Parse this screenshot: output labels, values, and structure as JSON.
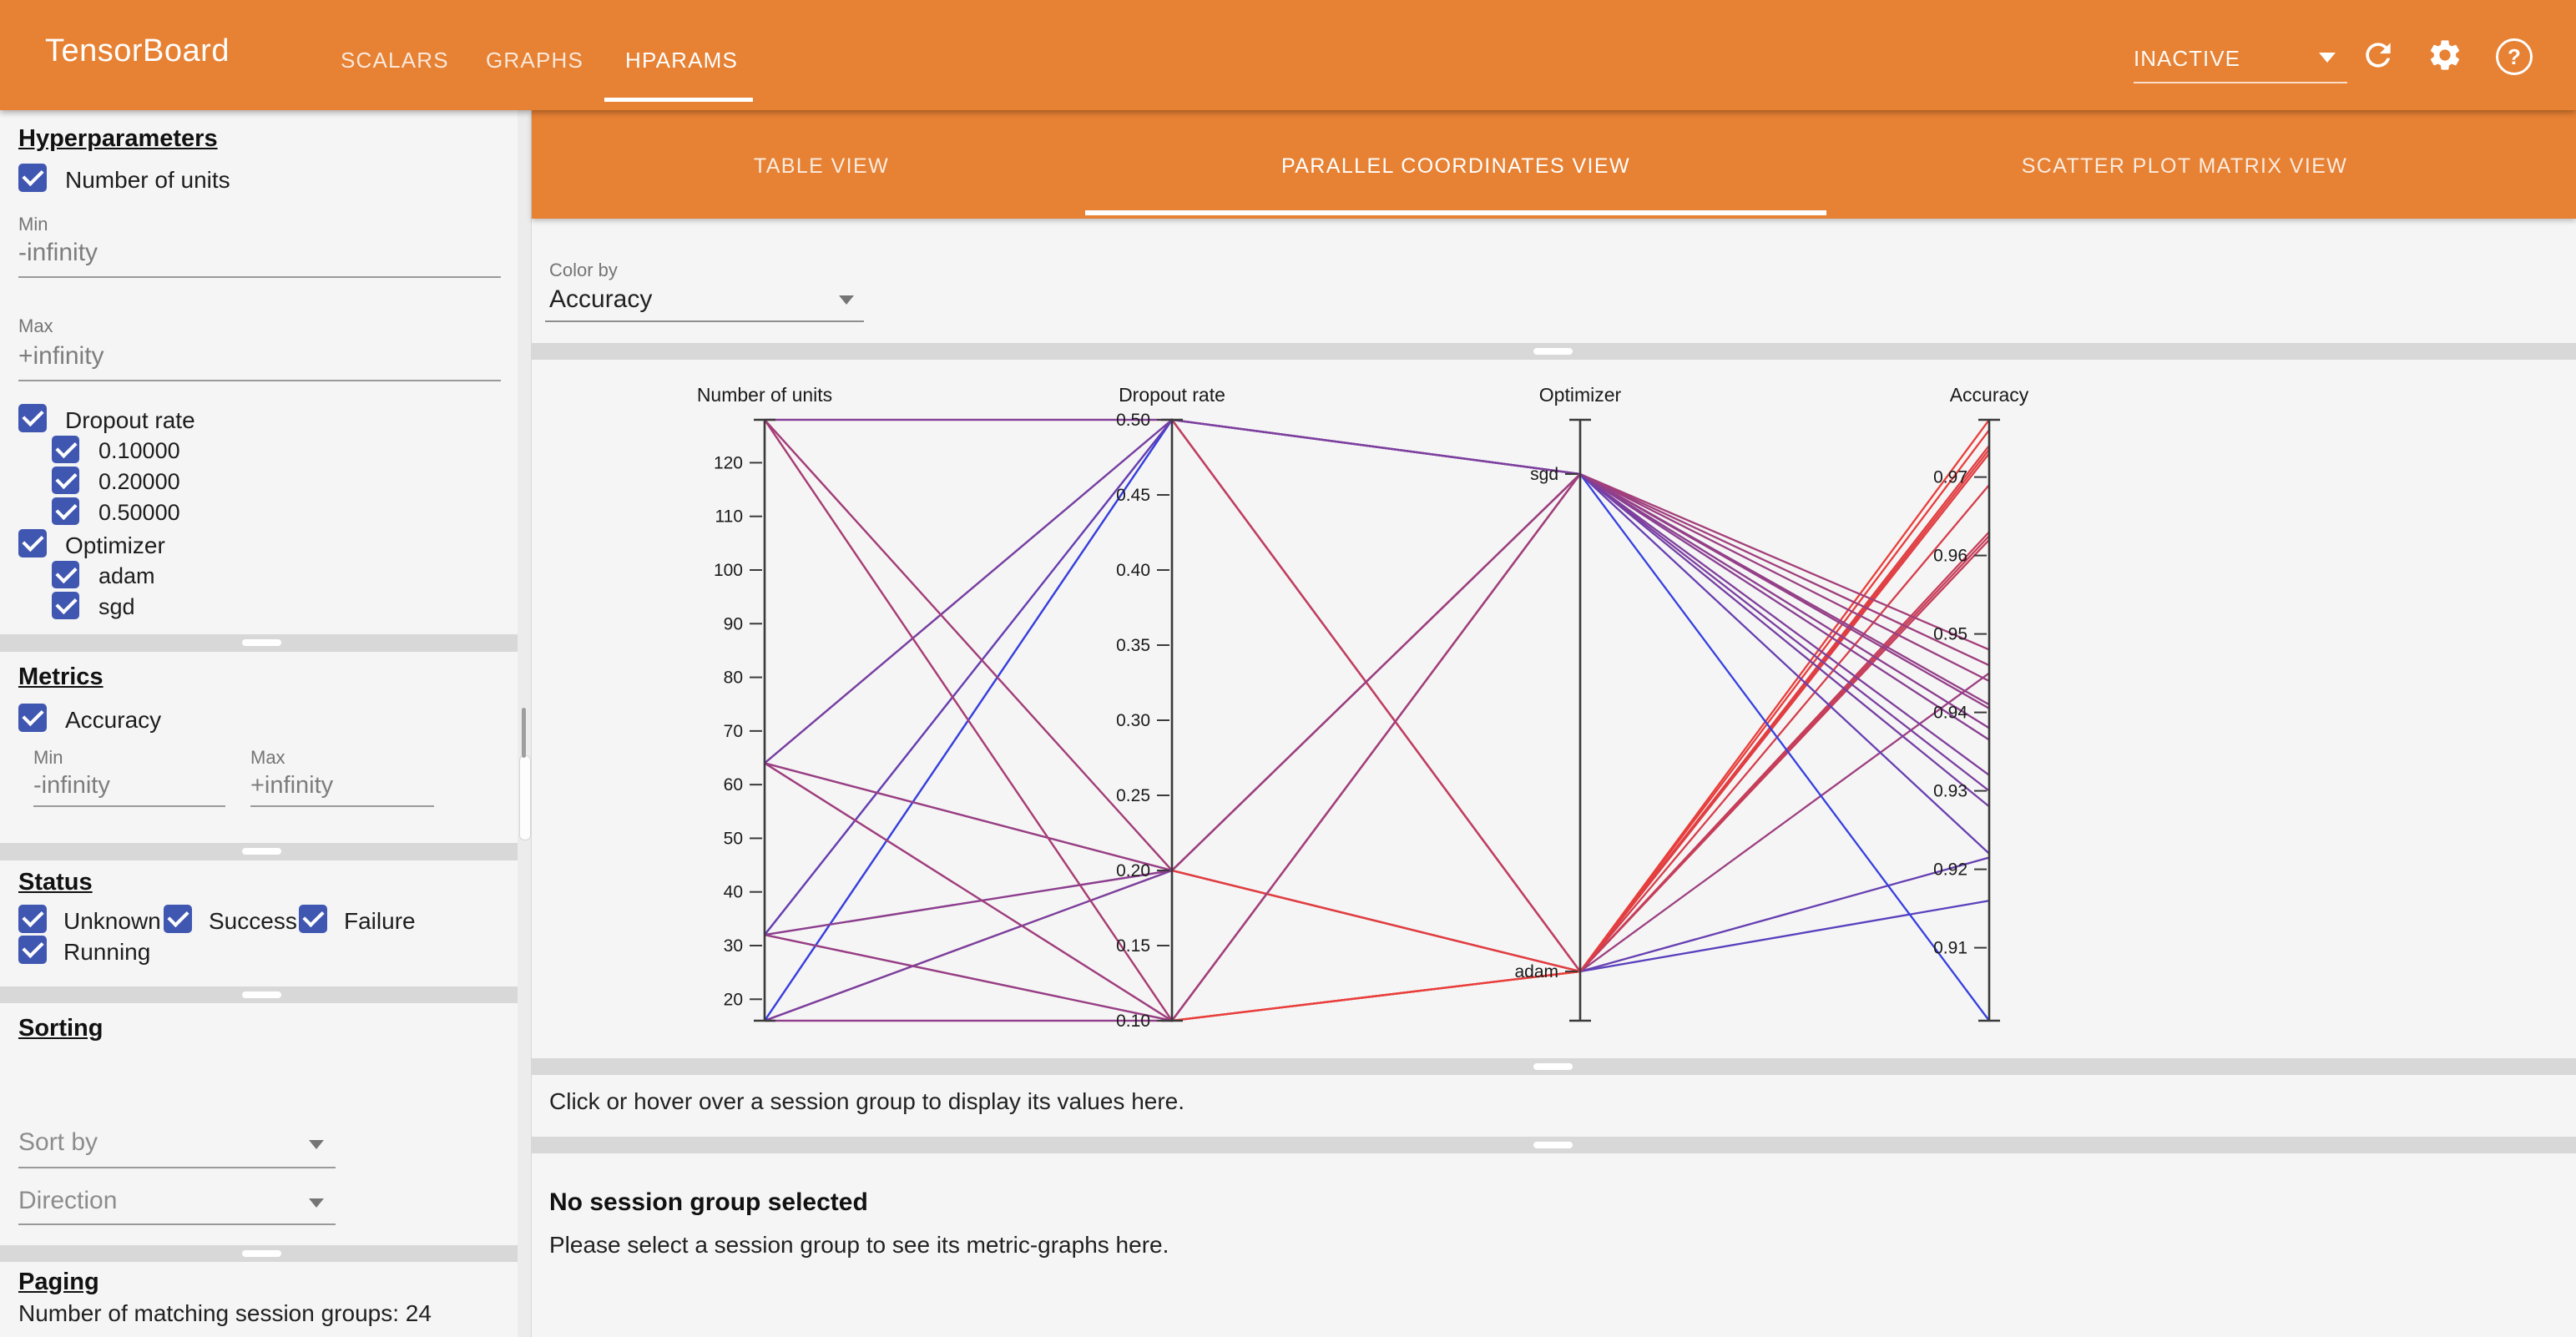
{
  "header": {
    "title": "TensorBoard",
    "tabs": [
      {
        "label": "SCALARS",
        "active": false
      },
      {
        "label": "GRAPHS",
        "active": false
      },
      {
        "label": "HPARAMS",
        "active": true
      }
    ],
    "status": "INACTIVE",
    "icons": {
      "dropdown_arrow": "▾",
      "reload": "reload-icon",
      "settings": "settings-icon",
      "help": "?"
    }
  },
  "view_tabs": [
    {
      "label": "TABLE VIEW",
      "active": false
    },
    {
      "label": "PARALLEL COORDINATES VIEW",
      "active": true
    },
    {
      "label": "SCATTER PLOT MATRIX VIEW",
      "active": false
    }
  ],
  "color_by": {
    "label": "Color by",
    "value": "Accuracy"
  },
  "sidebar": {
    "hyperparameters": {
      "heading": "Hyperparameters",
      "number_of_units": {
        "label": "Number of units",
        "checked": true,
        "min_label": "Min",
        "min_value": "-infinity",
        "max_label": "Max",
        "max_value": "+infinity"
      },
      "dropout": {
        "label": "Dropout rate",
        "checked": true,
        "children": [
          "0.10000",
          "0.20000",
          "0.50000"
        ]
      },
      "optimizer": {
        "label": "Optimizer",
        "checked": true,
        "children": [
          "adam",
          "sgd"
        ]
      }
    },
    "metrics": {
      "heading": "Metrics",
      "accuracy_label": "Accuracy",
      "checked": true,
      "min_label": "Min",
      "min_value": "-infinity",
      "max_label": "Max",
      "max_value": "+infinity"
    },
    "status": {
      "heading": "Status",
      "options": [
        "Unknown",
        "Success",
        "Failure",
        "Running"
      ]
    },
    "sorting": {
      "heading": "Sorting",
      "sort_by_placeholder": "Sort by",
      "direction_placeholder": "Direction"
    },
    "paging": {
      "heading": "Paging",
      "summary": "Number of matching session groups: 24"
    }
  },
  "hint": "Click or hover over a session group to display its values here.",
  "empty_state": {
    "title": "No session group selected",
    "subtitle": "Please select a session group to see its metric-graphs here."
  },
  "chart_data": {
    "type": "parallel-coordinates",
    "color_by": "Accuracy",
    "color_scale": {
      "min": "#3540df",
      "max": "#e93e3a",
      "min_value": 0.9007,
      "max_value": 0.9773
    },
    "axes": [
      {
        "name": "Number of units",
        "scale": "linear",
        "min": 16,
        "max": 128,
        "ticks": [
          "20",
          "30",
          "40",
          "50",
          "60",
          "70",
          "80",
          "90",
          "100",
          "110",
          "120"
        ]
      },
      {
        "name": "Dropout rate",
        "scale": "linear",
        "min": 0.1,
        "max": 0.5,
        "ticks": [
          "0.10",
          "0.15",
          "0.20",
          "0.25",
          "0.30",
          "0.35",
          "0.40",
          "0.45",
          "0.50"
        ]
      },
      {
        "name": "Optimizer",
        "scale": "categorical",
        "categories": [
          "sgd",
          "adam"
        ]
      },
      {
        "name": "Accuracy",
        "scale": "linear",
        "min": 0.9007,
        "max": 0.9773,
        "ticks": [
          "0.91",
          "0.92",
          "0.93",
          "0.94",
          "0.95",
          "0.96",
          "0.97"
        ]
      }
    ],
    "sessions": [
      {
        "units": 16,
        "dropout": 0.1,
        "optimizer": "adam",
        "accuracy": 0.969
      },
      {
        "units": 16,
        "dropout": 0.2,
        "optimizer": "adam",
        "accuracy": 0.962
      },
      {
        "units": 16,
        "dropout": 0.5,
        "optimizer": "adam",
        "accuracy": 0.916
      },
      {
        "units": 32,
        "dropout": 0.1,
        "optimizer": "adam",
        "accuracy": 0.9735
      },
      {
        "units": 32,
        "dropout": 0.2,
        "optimizer": "adam",
        "accuracy": 0.963
      },
      {
        "units": 32,
        "dropout": 0.5,
        "optimizer": "adam",
        "accuracy": 0.9215
      },
      {
        "units": 64,
        "dropout": 0.1,
        "optimizer": "adam",
        "accuracy": 0.976
      },
      {
        "units": 64,
        "dropout": 0.2,
        "optimizer": "adam",
        "accuracy": 0.973
      },
      {
        "units": 64,
        "dropout": 0.5,
        "optimizer": "adam",
        "accuracy": 0.945
      },
      {
        "units": 128,
        "dropout": 0.1,
        "optimizer": "adam",
        "accuracy": 0.9773
      },
      {
        "units": 128,
        "dropout": 0.2,
        "optimizer": "adam",
        "accuracy": 0.974
      },
      {
        "units": 128,
        "dropout": 0.5,
        "optimizer": "adam",
        "accuracy": 0.9625
      },
      {
        "units": 16,
        "dropout": 0.1,
        "optimizer": "sgd",
        "accuracy": 0.938
      },
      {
        "units": 16,
        "dropout": 0.2,
        "optimizer": "sgd",
        "accuracy": 0.93
      },
      {
        "units": 16,
        "dropout": 0.5,
        "optimizer": "sgd",
        "accuracy": 0.9007
      },
      {
        "units": 32,
        "dropout": 0.1,
        "optimizer": "sgd",
        "accuracy": 0.9405
      },
      {
        "units": 32,
        "dropout": 0.2,
        "optimizer": "sgd",
        "accuracy": 0.9365
      },
      {
        "units": 32,
        "dropout": 0.5,
        "optimizer": "sgd",
        "accuracy": 0.922
      },
      {
        "units": 64,
        "dropout": 0.1,
        "optimizer": "sgd",
        "accuracy": 0.944
      },
      {
        "units": 64,
        "dropout": 0.2,
        "optimizer": "sgd",
        "accuracy": 0.941
      },
      {
        "units": 64,
        "dropout": 0.5,
        "optimizer": "sgd",
        "accuracy": 0.928
      },
      {
        "units": 128,
        "dropout": 0.1,
        "optimizer": "sgd",
        "accuracy": 0.948
      },
      {
        "units": 128,
        "dropout": 0.2,
        "optimizer": "sgd",
        "accuracy": 0.946
      },
      {
        "units": 128,
        "dropout": 0.5,
        "optimizer": "sgd",
        "accuracy": 0.932
      }
    ]
  }
}
